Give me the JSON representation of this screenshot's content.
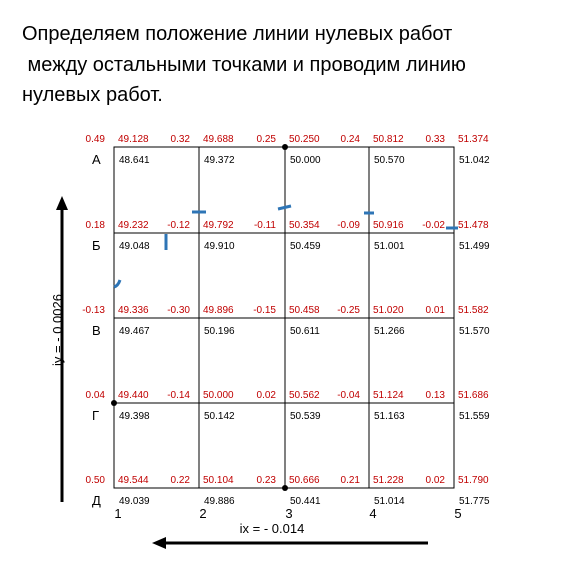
{
  "header": {
    "lines": [
      "Определяем положение линии нулевых работ",
      " между остальными точками и проводим линию",
      "нулевых работ."
    ]
  },
  "slope_y": "iу = - 0.0026",
  "slope_x": "iх = - 0.014",
  "columns": [
    "1",
    "2",
    "3",
    "4",
    "5"
  ],
  "rows": [
    {
      "label": "А",
      "nodes": [
        {
          "work": "0.49",
          "design": "49.128",
          "natural": "48.641"
        },
        {
          "work": "0.32",
          "design": "49.688",
          "natural": "49.372"
        },
        {
          "work": "0.25",
          "design": "50.250",
          "natural": "50.000"
        },
        {
          "work": "0.24",
          "design": "50.812",
          "natural": "50.570"
        },
        {
          "work": "0.33",
          "design": "51.374",
          "natural": "51.042"
        }
      ]
    },
    {
      "label": "Б",
      "nodes": [
        {
          "work": "0.18",
          "design": "49.232",
          "natural": "49.048"
        },
        {
          "work": "-0.12",
          "design": "49.792",
          "natural": "49.910"
        },
        {
          "work": "-0.11",
          "design": "50.354",
          "natural": "50.459"
        },
        {
          "work": "-0.09",
          "design": "50.916",
          "natural": "51.001"
        },
        {
          "work": "-0.02",
          "design": "51.478",
          "natural": "51.499"
        }
      ]
    },
    {
      "label": "В",
      "nodes": [
        {
          "work": "-0.13",
          "design": "49.336",
          "natural": "49.467"
        },
        {
          "work": "-0.30",
          "design": "49.896",
          "natural": "50.196"
        },
        {
          "work": "-0.15",
          "design": "50.458",
          "natural": "50.611"
        },
        {
          "work": "-0.25",
          "design": "51.020",
          "natural": "51.266"
        },
        {
          "work": "0.01",
          "design": "51.582",
          "natural": "51.570"
        }
      ]
    },
    {
      "label": "Г",
      "nodes": [
        {
          "work": "0.04",
          "design": "49.440",
          "natural": "49.398"
        },
        {
          "work": "-0.14",
          "design": "50.000",
          "natural": "50.142"
        },
        {
          "work": "0.02",
          "design": "50.562",
          "natural": "50.539"
        },
        {
          "work": "-0.04",
          "design": "51.124",
          "natural": "51.163"
        },
        {
          "work": "0.13",
          "design": "51.686",
          "natural": "51.559"
        }
      ]
    },
    {
      "label": "Д",
      "nodes": [
        {
          "work": "0.50",
          "design": "49.544",
          "natural": "49.039"
        },
        {
          "work": "0.22",
          "design": "50.104",
          "natural": "49.886"
        },
        {
          "work": "0.23",
          "design": "50.666",
          "natural": "50.441"
        },
        {
          "work": "0.21",
          "design": "51.228",
          "natural": "51.014"
        },
        {
          "work": "0.02",
          "design": "51.790",
          "natural": "51.775"
        }
      ]
    }
  ]
}
